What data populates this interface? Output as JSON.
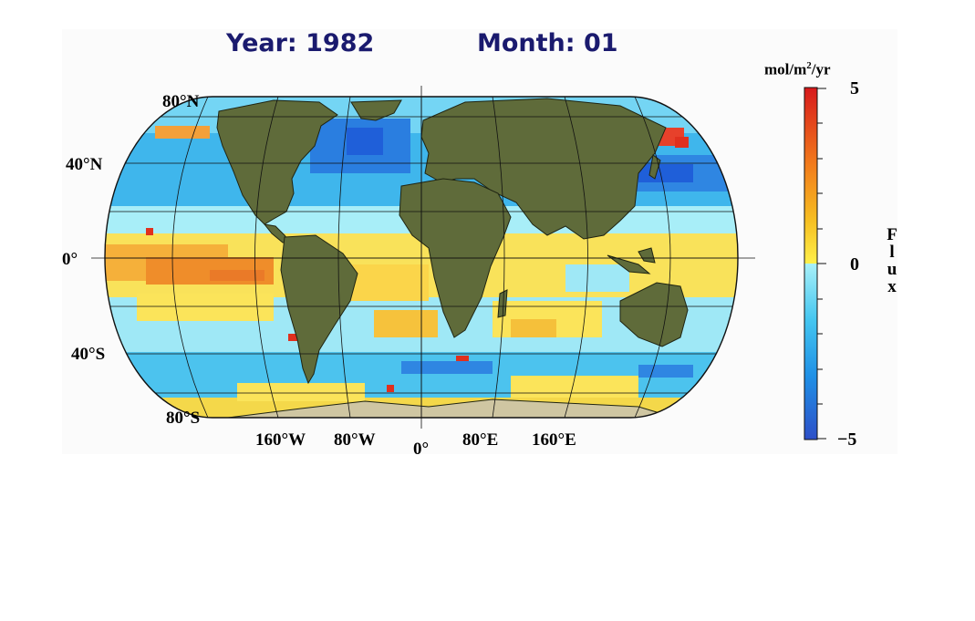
{
  "header": {
    "year_label": "Year: 1982",
    "month_label": "Month: 01"
  },
  "map": {
    "lat_labels": [
      "80°N",
      "40°N",
      "0°",
      "40°S",
      "80°S"
    ],
    "lon_labels": [
      "160°W",
      "80°W",
      "0°",
      "80°E",
      "160°E"
    ],
    "ocean_colors": {
      "strong_negative": "#1f5fd9",
      "negative": "#3aa5ea",
      "weak_negative": "#8ee5f5",
      "weak_positive": "#fbe45a",
      "positive": "#f5a623",
      "strong_positive": "#e0301e"
    },
    "land_color": "#5f6b3a"
  },
  "colorbar": {
    "unit_base": "mol/m",
    "unit_sup": "2",
    "unit_tail": "/yr",
    "title_letters": [
      "F",
      "l",
      "u",
      "x"
    ],
    "max_label": "5",
    "mid_label": "0",
    "min_label": "−5",
    "range": [
      -5,
      5
    ]
  }
}
